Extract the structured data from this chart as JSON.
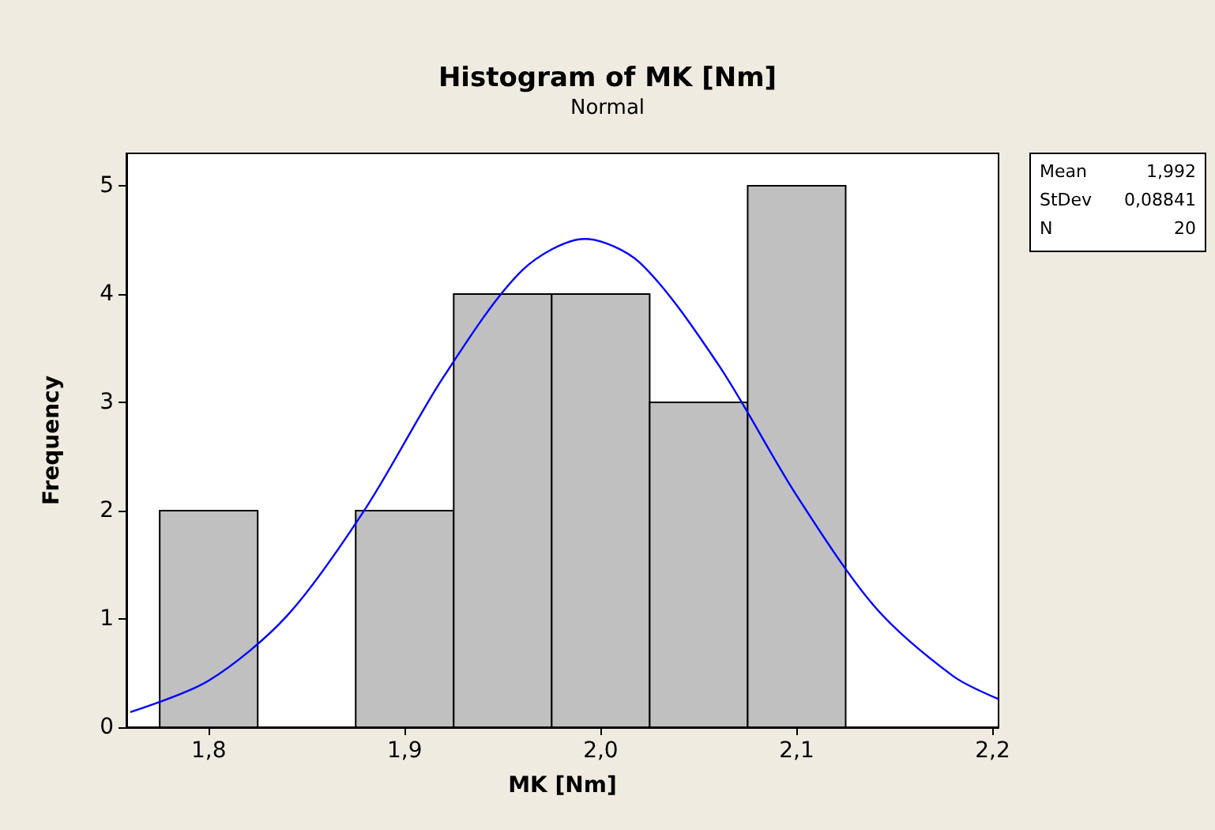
{
  "chart_data": {
    "type": "histogram",
    "title": "Histogram of MK [Nm]",
    "subtitle": "Normal",
    "xlabel": "MK [Nm]",
    "ylabel": "Frequency",
    "bins": [
      1.775,
      1.825,
      1.875,
      1.925,
      1.975,
      2.025,
      2.075,
      2.125
    ],
    "values": [
      2,
      0,
      2,
      4,
      4,
      3,
      5
    ],
    "color": "#c0c0c0",
    "series": [
      {
        "type": "line",
        "color": "#0000ff",
        "x": [
          1.76,
          1.8,
          1.84,
          1.88,
          1.92,
          1.96,
          1.992,
          2.02,
          2.06,
          2.1,
          2.14,
          2.18,
          2.203
        ],
        "values": [
          0.14,
          0.43,
          1.03,
          2.02,
          3.24,
          4.22,
          4.51,
          4.29,
          3.35,
          2.14,
          1.11,
          0.47,
          0.26
        ]
      }
    ],
    "xlim": [
      1.758,
      2.203
    ],
    "xticks": [
      {
        "value": 1.8,
        "label": "1,8"
      },
      {
        "value": 1.9,
        "label": "1,9"
      },
      {
        "value": 2.0,
        "label": "2,0"
      },
      {
        "value": 2.1,
        "label": "2,1"
      },
      {
        "value": 2.2,
        "label": "2,2"
      }
    ],
    "ylim": [
      0,
      5.3
    ],
    "yticks": [
      0,
      1,
      2,
      3,
      4,
      5
    ],
    "annotations": [
      "Mean 1,992",
      "StDev 0,08841",
      "N 20"
    ],
    "grid": false,
    "marker": "none"
  }
}
